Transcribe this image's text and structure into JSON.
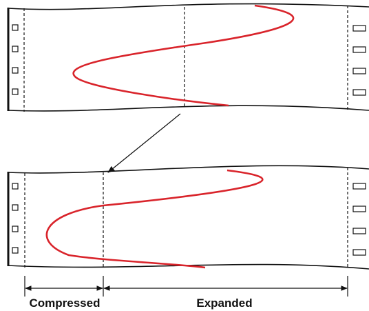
{
  "labels": {
    "compressed": "Compressed",
    "expanded": "Expanded"
  }
}
